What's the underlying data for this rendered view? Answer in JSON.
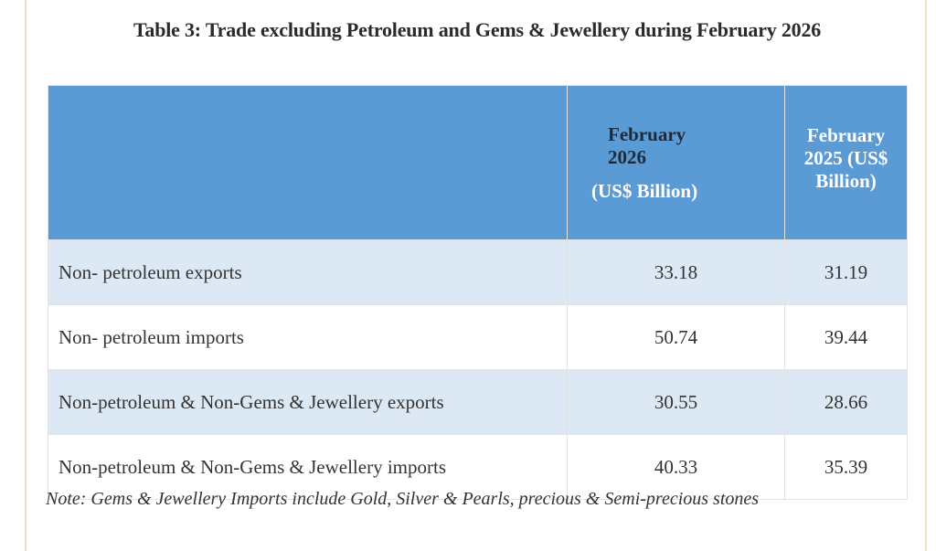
{
  "title": "Table 3: Trade excluding Petroleum and Gems & Jewellery during February 2026",
  "table": {
    "headers": {
      "col0": "",
      "col1_main": "February 2026",
      "col1_unit": "(US$ Billion)",
      "col2": "February 2025 (US$ Billion)"
    },
    "rows": [
      {
        "label": "Non- petroleum exports",
        "feb2026": "33.18",
        "feb2025": "31.19"
      },
      {
        "label": "Non- petroleum imports",
        "feb2026": "50.74",
        "feb2025": "39.44"
      },
      {
        "label": "Non-petroleum & Non-Gems & Jewellery exports",
        "feb2026": "30.55",
        "feb2025": "28.66"
      },
      {
        "label": "Non-petroleum & Non-Gems & Jewellery imports",
        "feb2026": "40.33",
        "feb2025": "35.39"
      }
    ]
  },
  "note": "Note: Gems & Jewellery Imports include Gold, Silver & Pearls, precious & Semi-precious stones",
  "colors": {
    "header_bg": "#5b9bd5",
    "row_alt_bg": "#dde8f5"
  }
}
